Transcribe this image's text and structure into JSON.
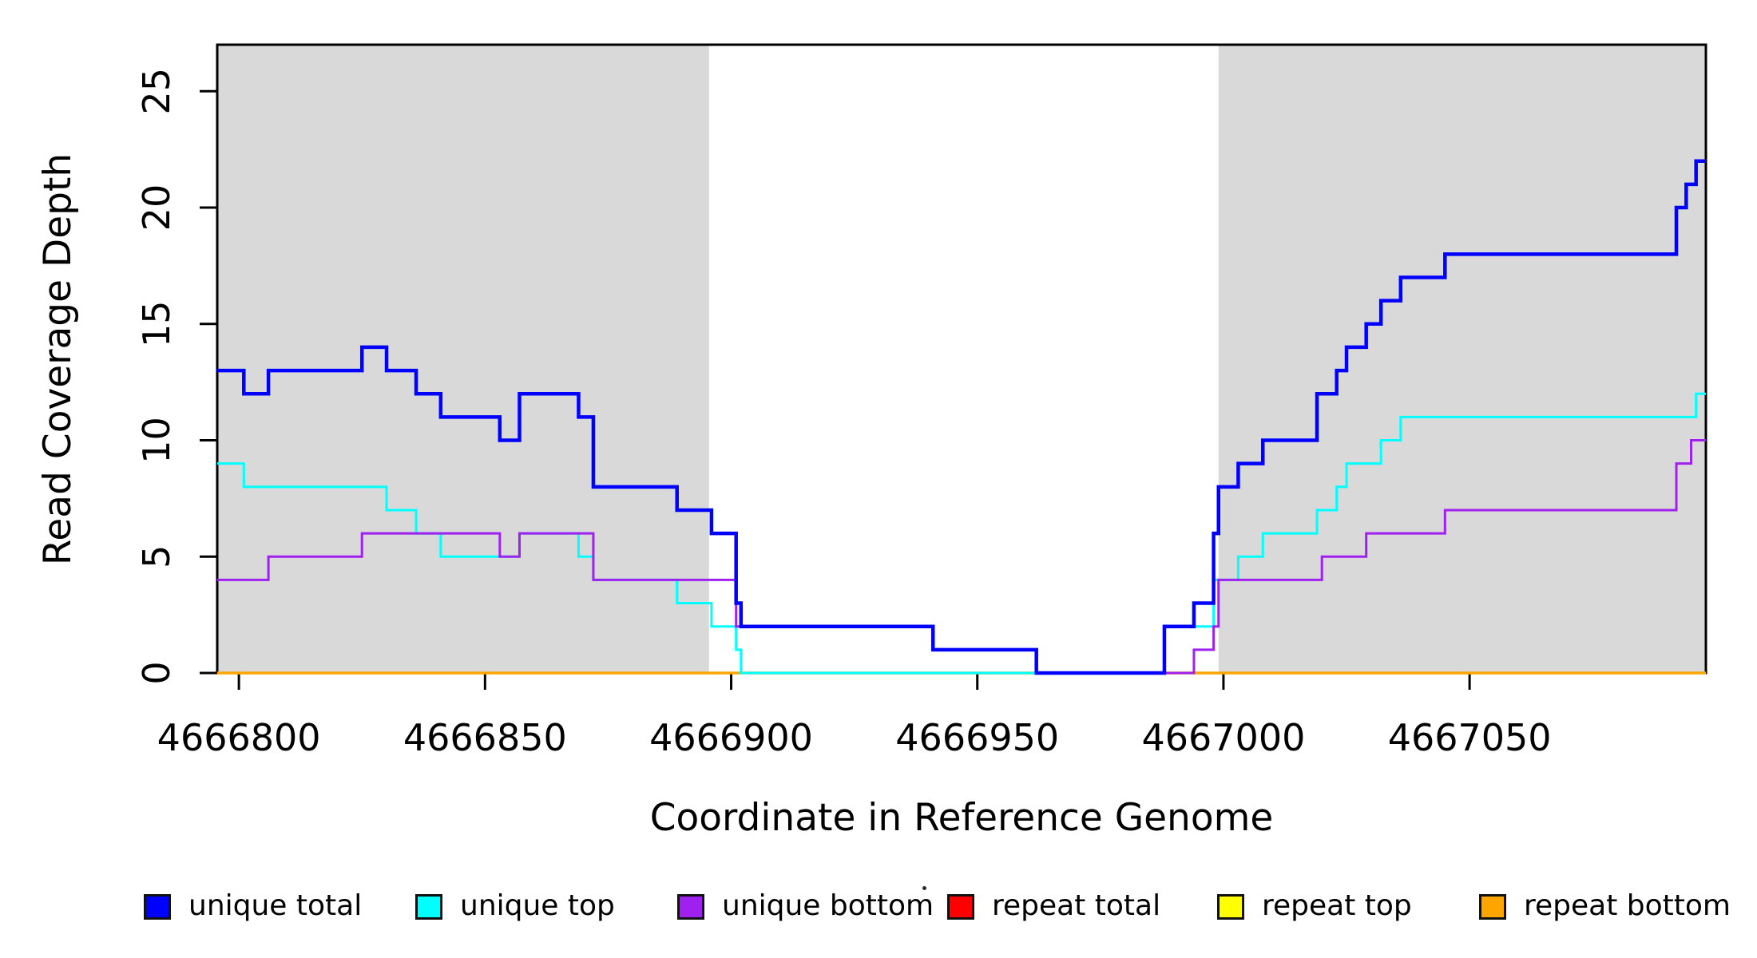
{
  "chart_data": {
    "type": "line",
    "step": true,
    "title": "",
    "xlabel": "Coordinate in Reference Genome",
    "ylabel": "Read Coverage Depth",
    "xlim": [
      4666795.6,
      4667098.0
    ],
    "ylim": [
      0,
      27
    ],
    "grid": false,
    "legend_position": "bottom",
    "x_ticks": [
      "4666800",
      "4666850",
      "4666900",
      "4666950",
      "4667000",
      "4667050"
    ],
    "x_tick_values": [
      4666800,
      4666850,
      4666900,
      4666950,
      4667000,
      4667050
    ],
    "y_ticks": [
      "0",
      "5",
      "10",
      "15",
      "20",
      "25"
    ],
    "y_tick_values": [
      0,
      5,
      10,
      15,
      20,
      25
    ],
    "background_bands": [
      {
        "name": "left-shaded-repeat-region",
        "x0": 4666795.6,
        "x1": 4666895.5,
        "color": "#D9D9D9"
      },
      {
        "name": "right-shaded-repeat-region",
        "x0": 4666999.0,
        "x1": 4667098.0,
        "color": "#D9D9D9"
      }
    ],
    "series": [
      {
        "name": "repeat total",
        "color": "#FF0000",
        "linewidth": 3,
        "points": [
          [
            4666795.6,
            0
          ],
          [
            4667098.0,
            0
          ]
        ]
      },
      {
        "name": "repeat top",
        "color": "#FFFF00",
        "linewidth": 3,
        "points": [
          [
            4666795.6,
            0
          ],
          [
            4667098.0,
            0
          ]
        ]
      },
      {
        "name": "repeat bottom",
        "color": "#FFA500",
        "linewidth": 3.5,
        "points": [
          [
            4666795.6,
            0
          ],
          [
            4667098.0,
            0
          ]
        ]
      },
      {
        "name": "unique top",
        "color": "#00FFFF",
        "linewidth": 3,
        "points": [
          [
            4666795.6,
            9
          ],
          [
            4666801,
            8
          ],
          [
            4666830,
            7
          ],
          [
            4666836,
            6
          ],
          [
            4666841,
            5
          ],
          [
            4666857,
            6
          ],
          [
            4666869,
            5
          ],
          [
            4666872,
            4
          ],
          [
            4666889,
            3
          ],
          [
            4666896,
            2
          ],
          [
            4666901,
            1
          ],
          [
            4666902,
            0
          ],
          [
            4666988,
            2
          ],
          [
            4666998,
            4
          ],
          [
            4667003,
            5
          ],
          [
            4667008,
            6
          ],
          [
            4667019,
            7
          ],
          [
            4667023,
            8
          ],
          [
            4667025,
            9
          ],
          [
            4667032,
            10
          ],
          [
            4667036,
            11
          ],
          [
            4667096,
            12
          ],
          [
            4667098,
            12
          ]
        ]
      },
      {
        "name": "unique bottom",
        "color": "#A020F0",
        "linewidth": 3,
        "points": [
          [
            4666795.6,
            4
          ],
          [
            4666806,
            5
          ],
          [
            4666825,
            6
          ],
          [
            4666853,
            5
          ],
          [
            4666857,
            6
          ],
          [
            4666872,
            4
          ],
          [
            4666901,
            2
          ],
          [
            4666941,
            1
          ],
          [
            4666962,
            0
          ],
          [
            4666994,
            1
          ],
          [
            4666998,
            2
          ],
          [
            4666999,
            4
          ],
          [
            4667020,
            5
          ],
          [
            4667029,
            6
          ],
          [
            4667045,
            7
          ],
          [
            4667092,
            9
          ],
          [
            4667095,
            10
          ],
          [
            4667098,
            10
          ]
        ]
      },
      {
        "name": "unique total",
        "color": "#0000FF",
        "linewidth": 4.5,
        "points": [
          [
            4666795.6,
            13
          ],
          [
            4666801,
            12
          ],
          [
            4666806,
            13
          ],
          [
            4666825,
            14
          ],
          [
            4666830,
            13
          ],
          [
            4666836,
            12
          ],
          [
            4666841,
            11
          ],
          [
            4666853,
            10
          ],
          [
            4666857,
            12
          ],
          [
            4666869,
            11
          ],
          [
            4666872,
            8
          ],
          [
            4666889,
            7
          ],
          [
            4666896,
            6
          ],
          [
            4666901,
            3
          ],
          [
            4666902,
            2
          ],
          [
            4666941,
            1
          ],
          [
            4666962,
            0
          ],
          [
            4666988,
            2
          ],
          [
            4666994,
            3
          ],
          [
            4666998,
            6
          ],
          [
            4666999,
            8
          ],
          [
            4667003,
            9
          ],
          [
            4667008,
            10
          ],
          [
            4667019,
            12
          ],
          [
            4667023,
            13
          ],
          [
            4667025,
            14
          ],
          [
            4667029,
            15
          ],
          [
            4667032,
            16
          ],
          [
            4667036,
            17
          ],
          [
            4667045,
            18
          ],
          [
            4667092,
            20
          ],
          [
            4667094,
            21
          ],
          [
            4667096,
            22
          ],
          [
            4667098,
            22
          ]
        ]
      }
    ],
    "legend": [
      {
        "label": "unique total",
        "color": "#0000FF"
      },
      {
        "label": "unique top",
        "color": "#00FFFF"
      },
      {
        "label": "unique bottom",
        "color": "#A020F0"
      },
      {
        "label": "repeat total",
        "color": "#FF0000"
      },
      {
        "label": "repeat top",
        "color": "#FFFF00"
      },
      {
        "label": "repeat bottom",
        "color": "#FFA500"
      }
    ]
  }
}
